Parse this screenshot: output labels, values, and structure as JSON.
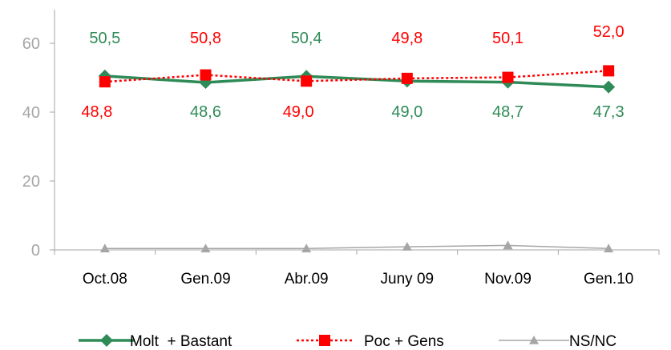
{
  "chart_data": {
    "type": "line",
    "categories": [
      "Oct.08",
      "Gen.09",
      "Abr.09",
      "Juny 09",
      "Nov.09",
      "Gen.10"
    ],
    "ylim": [
      0,
      60
    ],
    "yticks": [
      0,
      20,
      40,
      60
    ],
    "grid": false,
    "legend_position": "bottom",
    "series": [
      {
        "name": "Molt  + Bastant",
        "values": [
          50.5,
          48.6,
          50.4,
          49.0,
          48.7,
          47.3
        ],
        "labels": [
          "50,5",
          "48,6",
          "50,4",
          "49,0",
          "48,7",
          "47,3"
        ],
        "color": "#2e8b57",
        "marker": "diamond",
        "line_style": "solid"
      },
      {
        "name": "Poc + Gens",
        "values": [
          48.8,
          50.8,
          49.0,
          49.8,
          50.1,
          52.0
        ],
        "labels": [
          "48,8",
          "50,8",
          "49,0",
          "49,8",
          "50,1",
          "52,0"
        ],
        "color": "#ff0000",
        "marker": "square",
        "line_style": "dotted"
      },
      {
        "name": "NS/NC",
        "values": [
          0.4,
          0.4,
          0.4,
          0.9,
          1.3,
          0.4
        ],
        "color": "#a6a6a6",
        "marker": "triangle",
        "line_style": "solid"
      }
    ]
  }
}
